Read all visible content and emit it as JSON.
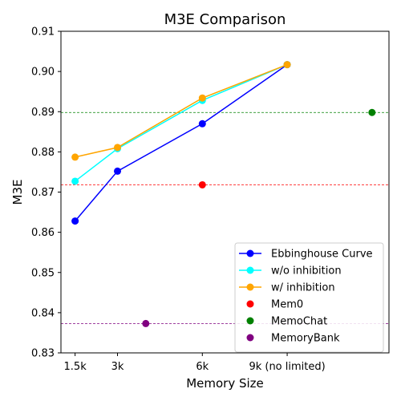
{
  "chart_data": {
    "type": "line",
    "title": "M3E Comparison",
    "xlabel": "Memory Size",
    "ylabel": "M3E",
    "x_ticks": [
      {
        "x": 1.5,
        "label": "1.5k"
      },
      {
        "x": 3,
        "label": "3k"
      },
      {
        "x": 6,
        "label": "6k"
      },
      {
        "x": 9,
        "label": "9k (no limited)"
      }
    ],
    "xlim": [
      1.0,
      12.6
    ],
    "ylim": [
      0.83,
      0.91
    ],
    "y_ticks": [
      {
        "y": 0.83,
        "label": "0.83"
      },
      {
        "y": 0.84,
        "label": "0.84"
      },
      {
        "y": 0.85,
        "label": "0.85"
      },
      {
        "y": 0.86,
        "label": "0.86"
      },
      {
        "y": 0.87,
        "label": "0.87"
      },
      {
        "y": 0.88,
        "label": "0.88"
      },
      {
        "y": 0.89,
        "label": "0.89"
      },
      {
        "y": 0.9,
        "label": "0.90"
      },
      {
        "y": 0.91,
        "label": "0.91"
      }
    ],
    "grid": false,
    "legend_position": "bottom-right",
    "series": [
      {
        "name": "Ebbinghouse Curve",
        "kind": "line",
        "color": "#0000ff",
        "x": [
          1.5,
          3,
          6,
          9
        ],
        "values": [
          0.8628,
          0.8752,
          0.887,
          0.9017
        ]
      },
      {
        "name": "w/o inhibition",
        "kind": "line",
        "color": "#00ffff",
        "x": [
          1.5,
          3,
          6,
          9
        ],
        "values": [
          0.8727,
          0.8808,
          0.8928,
          0.9017
        ]
      },
      {
        "name": "w/ inhibition",
        "kind": "line",
        "color": "#ffa500",
        "x": [
          1.5,
          3,
          6,
          9
        ],
        "values": [
          0.8787,
          0.8811,
          0.8934,
          0.9017
        ]
      },
      {
        "name": "Mem0",
        "kind": "scatter",
        "color": "#ff0000",
        "x": [
          6
        ],
        "values": [
          0.8718
        ],
        "hline": 0.8718
      },
      {
        "name": "MemoChat",
        "kind": "scatter",
        "color": "#008000",
        "x": [
          12
        ],
        "values": [
          0.8898
        ],
        "hline": 0.8898
      },
      {
        "name": "MemoryBank",
        "kind": "scatter",
        "color": "#800080",
        "x": [
          4
        ],
        "values": [
          0.8373
        ],
        "hline": 0.8373
      }
    ]
  }
}
